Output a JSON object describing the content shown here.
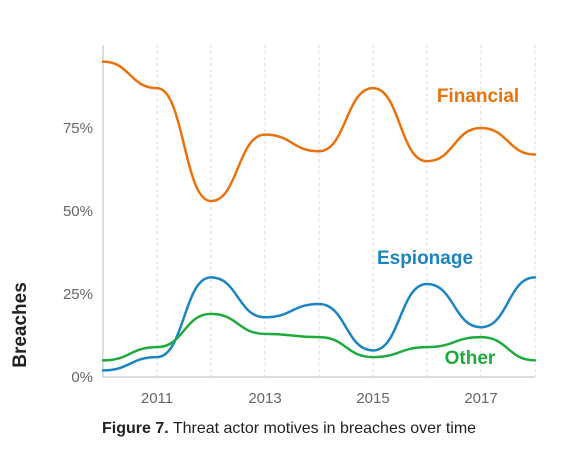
{
  "chart_data": {
    "type": "line",
    "x": [
      2010,
      2011,
      2012,
      2013,
      2014,
      2015,
      2016,
      2017,
      2018
    ],
    "series": [
      {
        "name": "Financial",
        "color": "#E8730E",
        "values": [
          95,
          87,
          53,
          73,
          68,
          87,
          65,
          75,
          67
        ]
      },
      {
        "name": "Espionage",
        "color": "#1B85C4",
        "values": [
          2,
          6,
          30,
          18,
          22,
          8,
          28,
          15,
          30
        ]
      },
      {
        "name": "Other",
        "color": "#1FAA3C",
        "values": [
          5,
          9,
          19,
          13,
          12,
          6,
          9,
          12,
          5
        ]
      }
    ],
    "x_ticks": [
      "2011",
      "2013",
      "2015",
      "2017"
    ],
    "y_ticks": [
      "0%",
      "25%",
      "50%",
      "75%"
    ],
    "xlim": [
      2010,
      2018
    ],
    "ylim": [
      0,
      100
    ],
    "ylabel": "Breaches",
    "grid": "vertical dashed"
  },
  "caption": {
    "figure": "Figure 7.",
    "text": " Threat actor motives in breaches over time"
  }
}
